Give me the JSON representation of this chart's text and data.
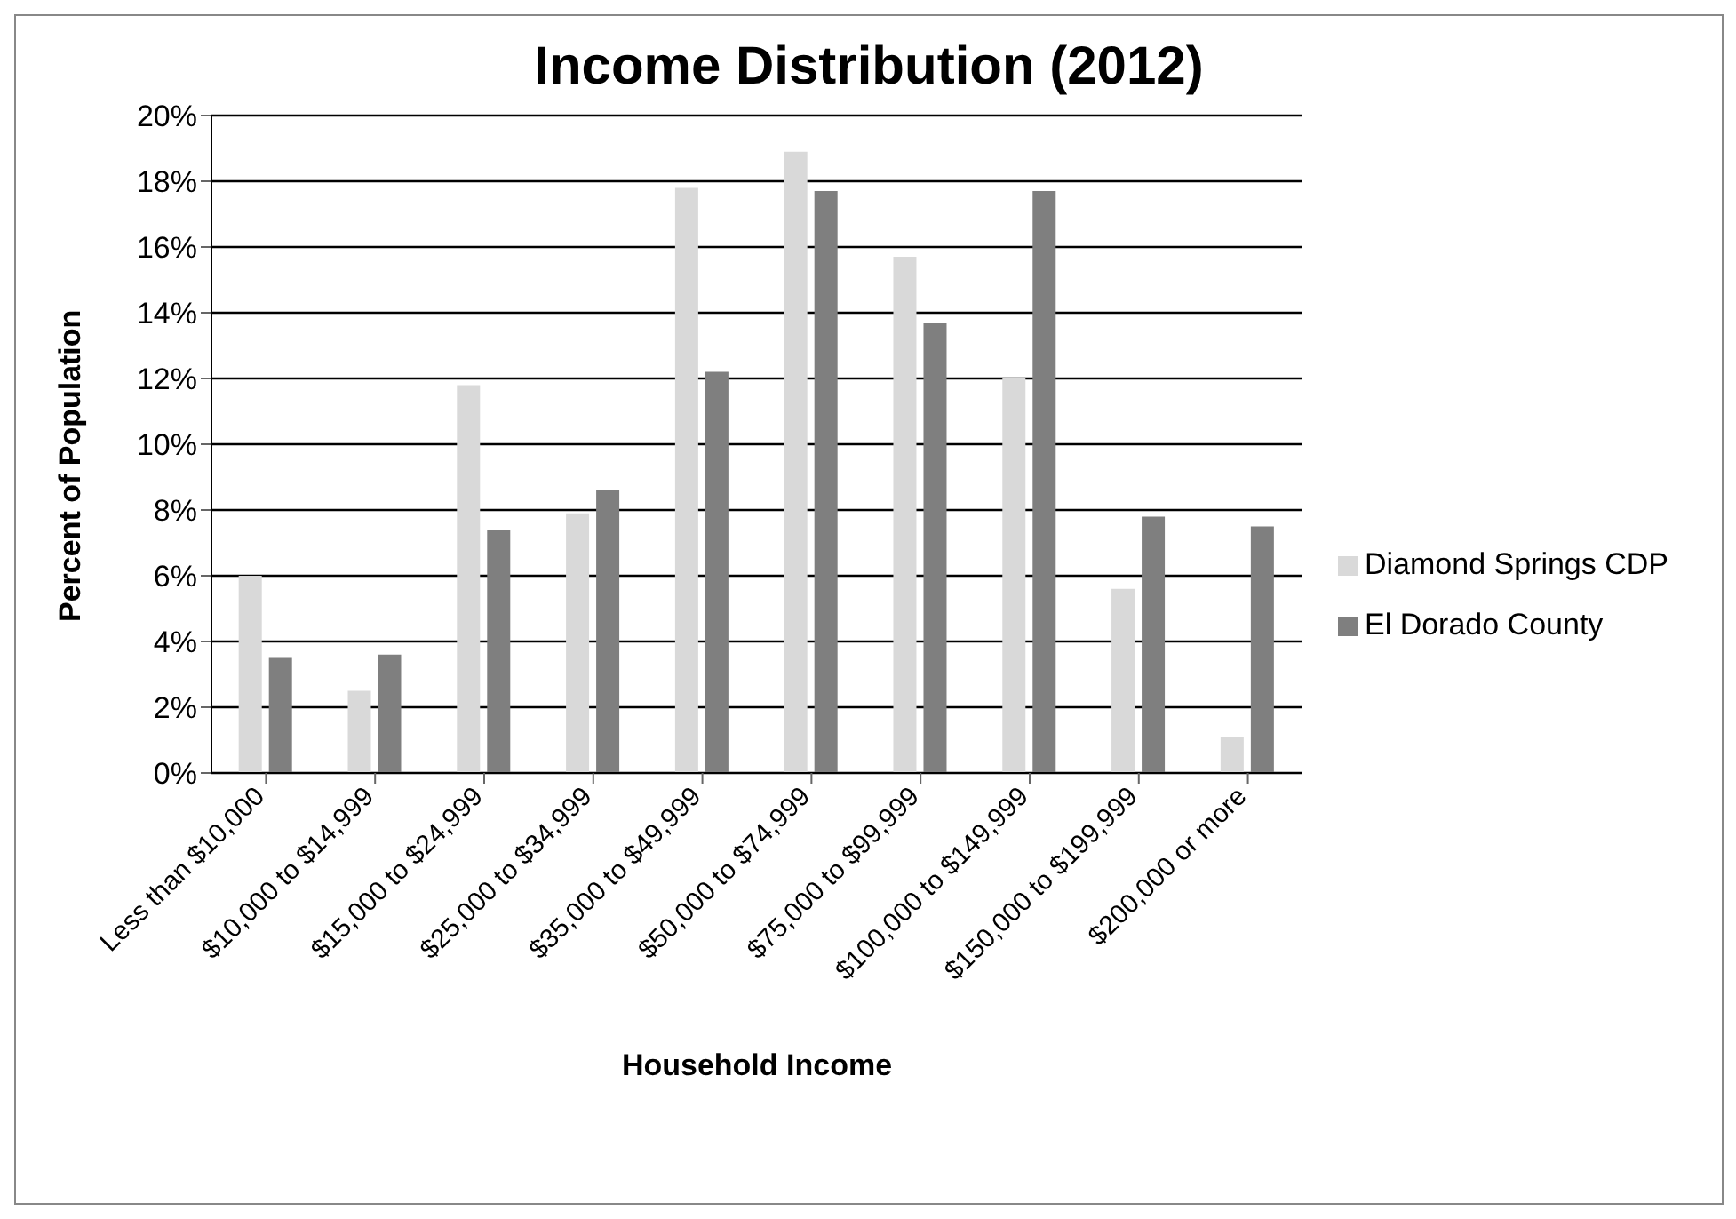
{
  "chart_data": {
    "type": "bar",
    "title": "Income Distribution (2012)",
    "xlabel": "Household Income",
    "ylabel": "Percent of Population",
    "categories": [
      "Less than $10,000",
      "$10,000 to $14,999",
      "$15,000 to $24,999",
      "$25,000 to $34,999",
      "$35,000 to $49,999",
      "$50,000 to $74,999",
      "$75,000 to $99,999",
      "$100,000 to $149,999",
      "$150,000 to $199,999",
      "$200,000 or more"
    ],
    "series": [
      {
        "name": "Diamond Springs CDP",
        "color": "#d9d9d9",
        "values": [
          6.0,
          2.5,
          11.8,
          7.9,
          17.8,
          18.9,
          15.7,
          12.0,
          5.6,
          1.1
        ]
      },
      {
        "name": "El Dorado County",
        "color": "#7f7f7f",
        "values": [
          3.5,
          3.6,
          7.4,
          8.6,
          12.2,
          17.7,
          13.7,
          17.7,
          7.8,
          7.5
        ]
      }
    ],
    "ylim": [
      0,
      20
    ],
    "yticks": [
      {
        "value": 0,
        "label": "0%"
      },
      {
        "value": 2,
        "label": "2%"
      },
      {
        "value": 4,
        "label": "4%"
      },
      {
        "value": 6,
        "label": "6%"
      },
      {
        "value": 8,
        "label": "8%"
      },
      {
        "value": 10,
        "label": "10%"
      },
      {
        "value": 12,
        "label": "12%"
      },
      {
        "value": 14,
        "label": "14%"
      },
      {
        "value": 16,
        "label": "16%"
      },
      {
        "value": 18,
        "label": "18%"
      },
      {
        "value": 20,
        "label": "20%"
      }
    ],
    "grid": "y",
    "legend": "right"
  }
}
